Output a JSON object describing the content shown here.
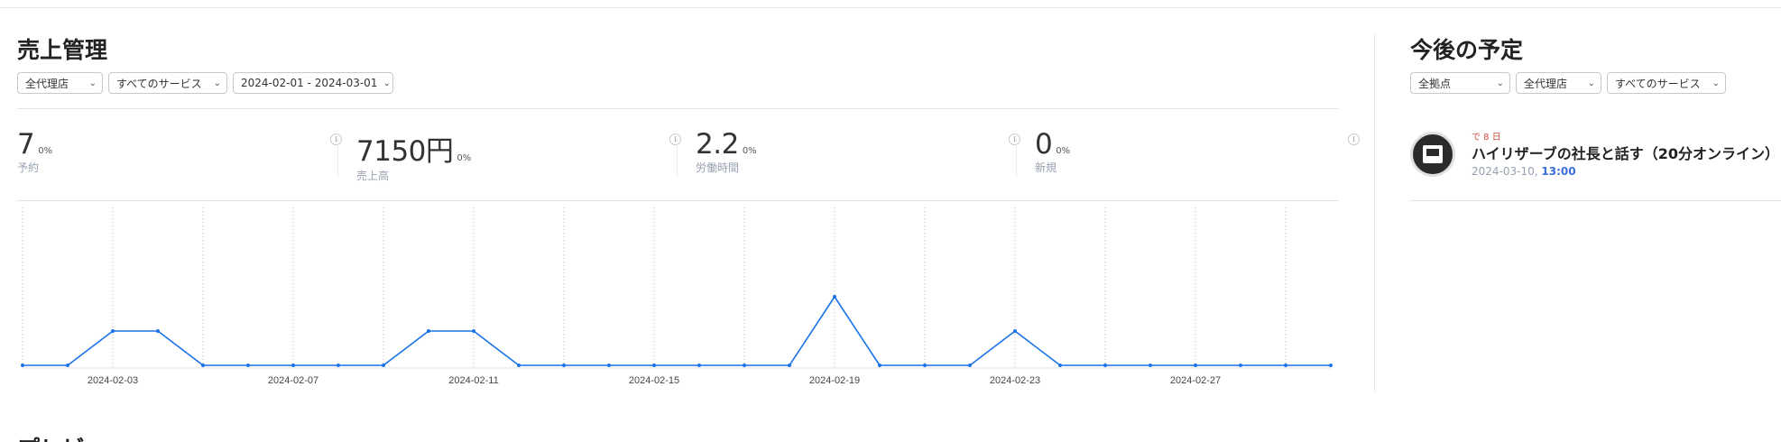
{
  "sales": {
    "title": "売上管理",
    "filters": [
      {
        "value": "全代理店"
      },
      {
        "value": "すべてのサービス"
      },
      {
        "value": "2024-02-01 - 2024-03-01"
      }
    ],
    "stats": [
      {
        "value": "7",
        "change": "0%",
        "label": "予約"
      },
      {
        "value": "7150円",
        "change": "0%",
        "label": "売上高"
      },
      {
        "value": "2.2",
        "change": "0%",
        "label": "労働時間"
      },
      {
        "value": "0",
        "change": "0%",
        "label": "新規"
      }
    ],
    "info_glyph": "i"
  },
  "chart_data": {
    "type": "line",
    "x": [
      "2024-02-01",
      "2024-02-02",
      "2024-02-03",
      "2024-02-04",
      "2024-02-05",
      "2024-02-06",
      "2024-02-07",
      "2024-02-08",
      "2024-02-09",
      "2024-02-10",
      "2024-02-11",
      "2024-02-12",
      "2024-02-13",
      "2024-02-14",
      "2024-02-15",
      "2024-02-16",
      "2024-02-17",
      "2024-02-18",
      "2024-02-19",
      "2024-02-20",
      "2024-02-21",
      "2024-02-22",
      "2024-02-23",
      "2024-02-24",
      "2024-02-25",
      "2024-02-26",
      "2024-02-27",
      "2024-02-28",
      "2024-02-29",
      "2024-03-01"
    ],
    "values": [
      0,
      0,
      1,
      1,
      0,
      0,
      0,
      0,
      0,
      1,
      1,
      0,
      0,
      0,
      0,
      0,
      0,
      0,
      2,
      0,
      0,
      0,
      1,
      0,
      0,
      0,
      0,
      0,
      0,
      0
    ],
    "tick_labels": [
      "2024-02-03",
      "2024-02-07",
      "2024-02-11",
      "2024-02-15",
      "2024-02-19",
      "2024-02-23",
      "2024-02-27"
    ],
    "ylim": [
      0,
      2
    ],
    "grid": "vertical-dotted",
    "line_color": "#1a73e8"
  },
  "upcoming": {
    "title": "今後の予定",
    "filters": [
      {
        "value": "全拠点"
      },
      {
        "value": "全代理店"
      },
      {
        "value": "すべてのサービス"
      }
    ],
    "event": {
      "when": "で 8 日",
      "title": "ハイリザーブの社長と話す（20分オンライン）",
      "date": "2024-03-10,",
      "time": "13:00",
      "avatar_icon": "calendar-logo-icon"
    }
  },
  "bottom": {
    "title": "プレビ"
  },
  "chevron_glyph": "⌄"
}
